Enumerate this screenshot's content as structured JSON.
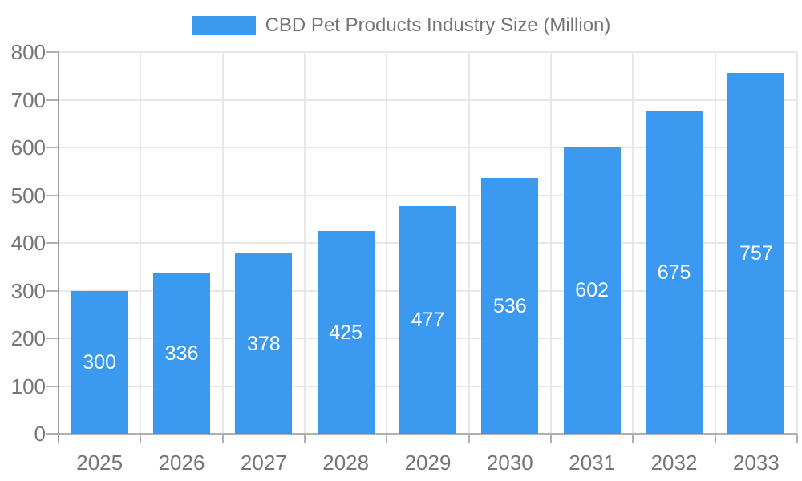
{
  "chart_data": {
    "type": "bar",
    "title": "CBD Pet Products Industry Size (Million)",
    "legend_entries": [
      "CBD Pet Products Industry Size (Million)"
    ],
    "legend_position": "top",
    "categories": [
      "2025",
      "2026",
      "2027",
      "2028",
      "2029",
      "2030",
      "2031",
      "2032",
      "2033"
    ],
    "values": [
      300,
      336,
      378,
      425,
      477,
      536,
      602,
      675,
      757
    ],
    "xlabel": "",
    "ylabel": "",
    "ylim": [
      0,
      800
    ],
    "ytick_interval": 100,
    "yticks": [
      0,
      100,
      200,
      300,
      400,
      500,
      600,
      700,
      800
    ],
    "grid": true,
    "colors": {
      "bar": "#3B99EF",
      "bar_label_text": "#ffffff",
      "axis_text": "#757575",
      "legend_text": "#757575",
      "gridline": "#e7e7e7",
      "y_axis_line": "#9c9c9c",
      "baseline_and_ticks": "#b0b0b0",
      "background": "#ffffff"
    }
  }
}
